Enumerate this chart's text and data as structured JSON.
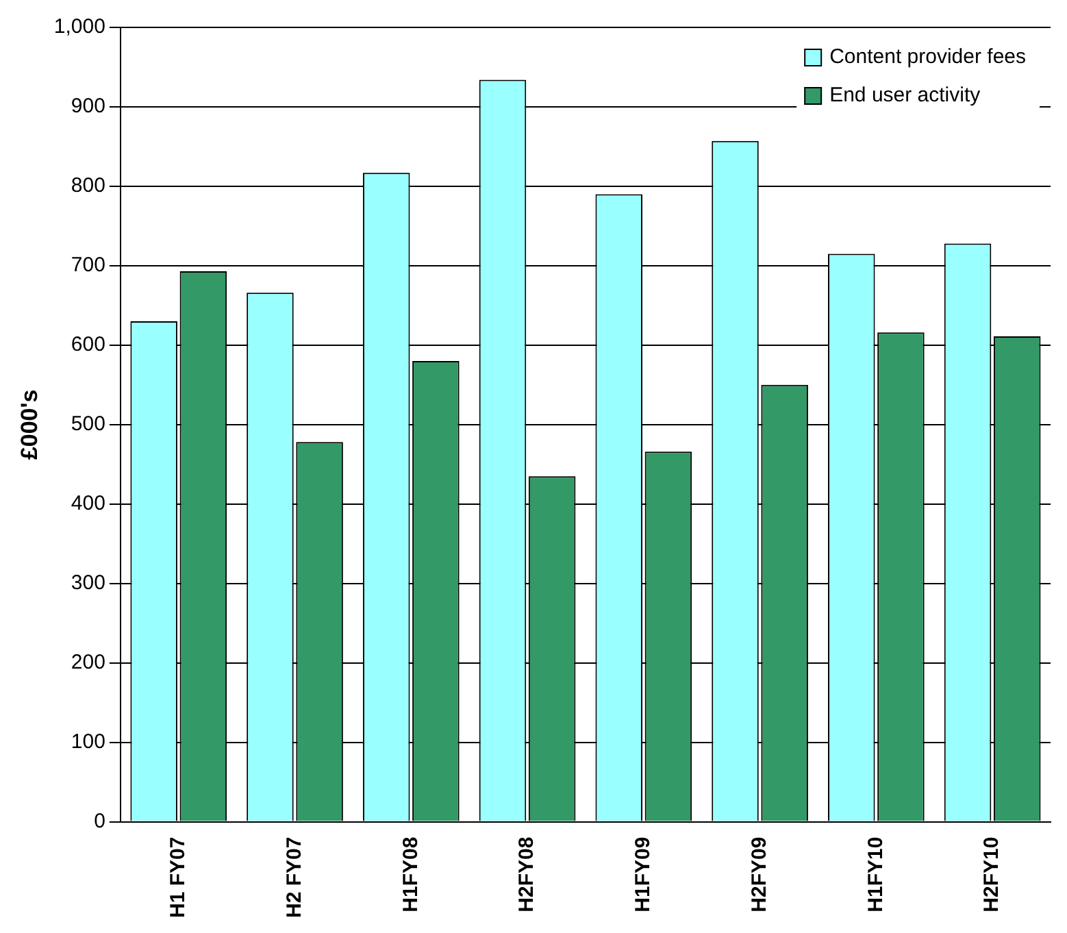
{
  "chart_data": {
    "type": "bar",
    "categories": [
      "H1 FY07",
      "H2 FY07",
      "H1FY08",
      "H2FY08",
      "H1FY09",
      "H2FY09",
      "H1FY10",
      "H2FY10"
    ],
    "series": [
      {
        "name": "Content provider fees",
        "color": "#99ffff",
        "values": [
          630,
          666,
          817,
          934,
          790,
          857,
          715,
          728
        ]
      },
      {
        "name": "End user activity",
        "color": "#339966",
        "values": [
          693,
          478,
          580,
          435,
          466,
          550,
          616,
          611
        ]
      }
    ],
    "ylabel": "£000's",
    "ylim": [
      0,
      1000
    ],
    "yticks": [
      0,
      {
        "value": 100,
        "label": "100"
      },
      {
        "value": 200,
        "label": "200"
      },
      {
        "value": 300,
        "label": "300"
      },
      {
        "value": 400,
        "label": "400"
      },
      {
        "value": 500,
        "label": "500"
      },
      {
        "value": 600,
        "label": "600"
      },
      {
        "value": 700,
        "label": "700"
      },
      {
        "value": 800,
        "label": "800"
      },
      {
        "value": 900,
        "label": "900"
      },
      {
        "value": 1000,
        "label": "1,000"
      }
    ],
    "grid": "y",
    "legend": "top right"
  }
}
